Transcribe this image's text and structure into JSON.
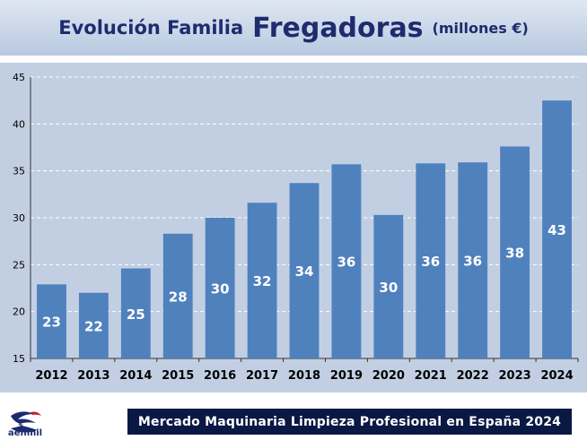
{
  "header": {
    "title_part1": "Evolución Familia",
    "title_part2": "Fregadoras",
    "title_part3": "(millones €)"
  },
  "chart_data": {
    "type": "bar",
    "categories": [
      "2012",
      "2013",
      "2014",
      "2015",
      "2016",
      "2017",
      "2018",
      "2019",
      "2020",
      "2021",
      "2022",
      "2023",
      "2024"
    ],
    "values": [
      22.9,
      22.0,
      24.6,
      28.3,
      30.0,
      31.6,
      33.7,
      35.7,
      30.3,
      35.8,
      35.9,
      37.6,
      42.5
    ],
    "data_labels": [
      "23",
      "22",
      "25",
      "28",
      "30",
      "32",
      "34",
      "36",
      "30",
      "36",
      "36",
      "38",
      "43"
    ],
    "ylim": [
      15,
      45
    ],
    "yticks": [
      15,
      20,
      25,
      30,
      35,
      40,
      45
    ],
    "grid": true,
    "bar_color": "#4f81bd",
    "label_color": "#ffffff"
  },
  "logo": {
    "text": "aefimil"
  },
  "footer": {
    "text": "Mercado Maquinaria Limpieza Profesional en España 2024"
  }
}
